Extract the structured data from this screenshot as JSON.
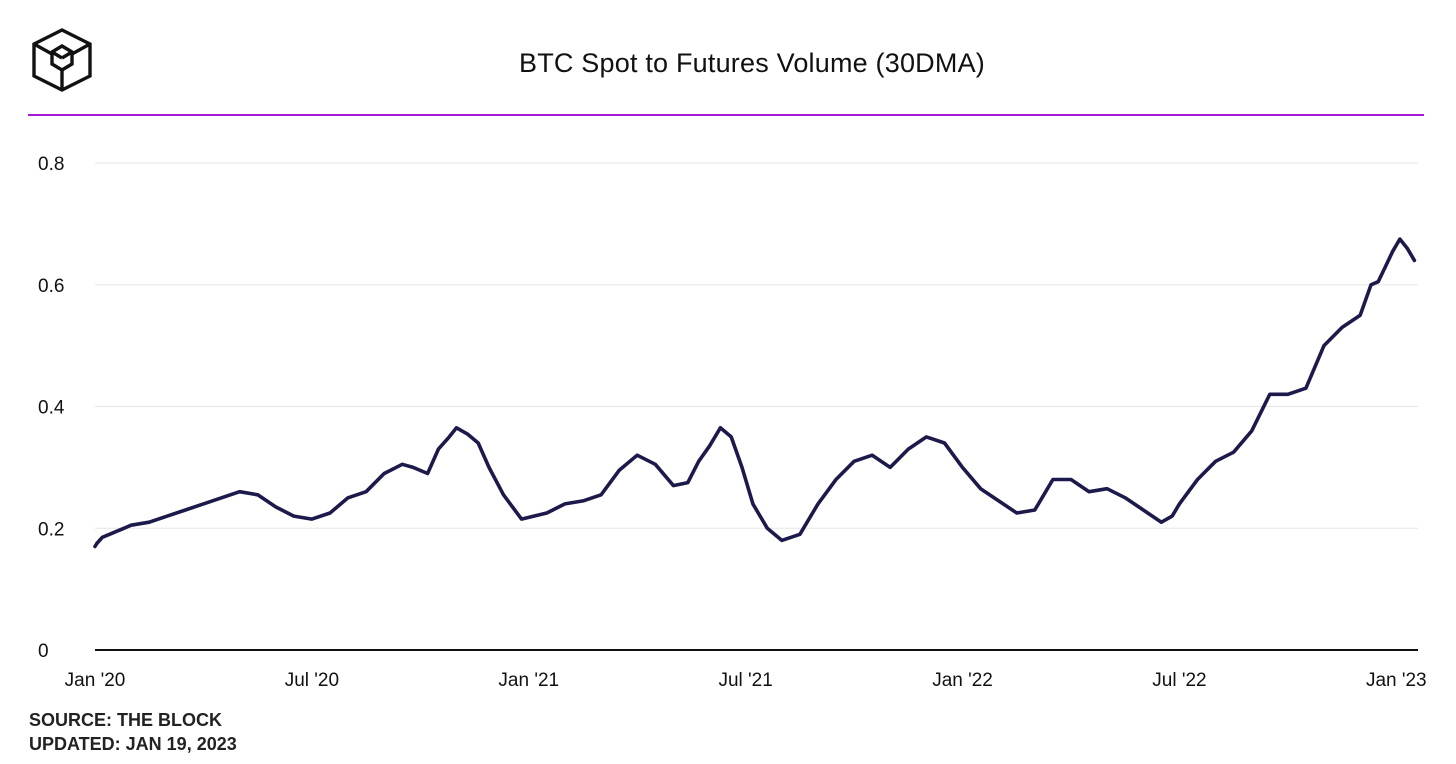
{
  "header": {
    "title": "BTC Spot to Futures Volume (30DMA)",
    "logo_icon": "the-block-cube-logo-icon"
  },
  "colors": {
    "accent_line": "#a319d6",
    "series_line": "#1c1a4b",
    "gridline": "#e6e6e6",
    "axis": "#111111"
  },
  "footer": {
    "source": "SOURCE: THE BLOCK",
    "updated": "UPDATED: JAN 19, 2023"
  },
  "chart_data": {
    "type": "line",
    "title": "BTC Spot to Futures Volume (30DMA)",
    "xlabel": "",
    "ylabel": "",
    "ylim": [
      0,
      0.8
    ],
    "yticks": [
      0,
      0.2,
      0.4,
      0.6,
      0.8
    ],
    "ytick_labels": [
      "0",
      "0.2",
      "0.4",
      "0.6",
      "0.8"
    ],
    "xlim": [
      0,
      36.6
    ],
    "xticks": [
      0,
      6,
      12,
      18,
      24,
      30,
      36
    ],
    "xtick_labels": [
      "Jan '20",
      "Jul '20",
      "Jan '21",
      "Jul '21",
      "Jan '22",
      "Jul '22",
      "Jan '23"
    ],
    "grid": true,
    "legend": "none",
    "series": [
      {
        "name": "BTC Spot to Futures Volume (30DMA)",
        "x": [
          0,
          0.05,
          0.2,
          0.4,
          0.6,
          0.8,
          1.0,
          1.5,
          2.0,
          2.5,
          3.0,
          3.5,
          4.0,
          4.5,
          5.0,
          5.5,
          6.0,
          6.5,
          7.0,
          7.5,
          8.0,
          8.5,
          8.8,
          9.2,
          9.5,
          9.8,
          10.0,
          10.3,
          10.6,
          10.9,
          11.3,
          11.8,
          12.5,
          13.0,
          13.5,
          14.0,
          14.5,
          15.0,
          15.5,
          16.0,
          16.4,
          16.7,
          17.0,
          17.3,
          17.6,
          17.9,
          18.2,
          18.6,
          19.0,
          19.5,
          20.0,
          20.5,
          21.0,
          21.5,
          22.0,
          22.5,
          23.0,
          23.5,
          24.0,
          24.5,
          25.0,
          25.5,
          26.0,
          26.5,
          27.0,
          27.5,
          28.0,
          28.5,
          29.0,
          29.5,
          29.8,
          30.0,
          30.5,
          31.0,
          31.5,
          32.0,
          32.5,
          33.0,
          33.5,
          34.0,
          34.5,
          35.0,
          35.3,
          35.5,
          35.7,
          35.9,
          36.1,
          36.3,
          36.5
        ],
        "values": [
          0.17,
          0.175,
          0.185,
          0.19,
          0.195,
          0.2,
          0.205,
          0.21,
          0.22,
          0.23,
          0.24,
          0.25,
          0.26,
          0.255,
          0.235,
          0.22,
          0.215,
          0.225,
          0.25,
          0.26,
          0.29,
          0.305,
          0.3,
          0.29,
          0.33,
          0.35,
          0.365,
          0.355,
          0.34,
          0.3,
          0.255,
          0.215,
          0.225,
          0.24,
          0.245,
          0.255,
          0.295,
          0.32,
          0.305,
          0.27,
          0.275,
          0.31,
          0.335,
          0.365,
          0.35,
          0.3,
          0.24,
          0.2,
          0.18,
          0.19,
          0.24,
          0.28,
          0.31,
          0.32,
          0.3,
          0.33,
          0.35,
          0.34,
          0.3,
          0.265,
          0.245,
          0.225,
          0.23,
          0.28,
          0.28,
          0.26,
          0.265,
          0.25,
          0.23,
          0.21,
          0.22,
          0.24,
          0.28,
          0.31,
          0.325,
          0.36,
          0.42,
          0.42,
          0.43,
          0.5,
          0.53,
          0.55,
          0.6,
          0.605,
          0.63,
          0.655,
          0.675,
          0.66,
          0.64
        ]
      }
    ]
  }
}
